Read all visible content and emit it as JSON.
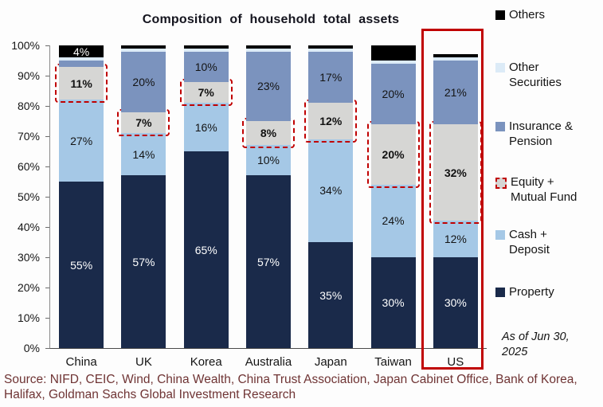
{
  "title": "Composition of household total assets",
  "as_of_note": "As of Jun 30, 2025",
  "source": "Source: NIFD, CEIC, Wind, China Wealth, China Trust Association, Japan Cabinet Office, Bank of Korea, Halifax, Goldman Sachs Global Investment Research",
  "chart_data": {
    "type": "bar",
    "variant": "stacked-percent",
    "title": "Composition of household total assets",
    "xlabel": "",
    "ylabel": "",
    "ylim": [
      0,
      100
    ],
    "yticks": [
      "0%",
      "10%",
      "20%",
      "30%",
      "40%",
      "50%",
      "60%",
      "70%",
      "80%",
      "90%",
      "100%"
    ],
    "grid": false,
    "legend_position": "right",
    "categories": [
      "China",
      "UK",
      "Korea",
      "Australia",
      "Japan",
      "Taiwan",
      "US"
    ],
    "series": [
      {
        "name": "Property",
        "color": "#1a2a4a",
        "label_color": "#ffffff",
        "bold": false,
        "dashed": false,
        "values": [
          55,
          57,
          65,
          57,
          35,
          30,
          30
        ],
        "labels": [
          "55%",
          "57%",
          "65%",
          "57%",
          "35%",
          "30%",
          "30%"
        ]
      },
      {
        "name": "Cash + Deposit",
        "color": "#a5c8e6",
        "label_color": "#141414",
        "bold": false,
        "dashed": false,
        "values": [
          27,
          14,
          16,
          10,
          34,
          24,
          12
        ],
        "labels": [
          "27%",
          "14%",
          "16%",
          "10%",
          "34%",
          "24%",
          "12%"
        ]
      },
      {
        "name": "Equity + Mutual Fund",
        "color": "#d6d6d4",
        "label_color": "#111111",
        "bold": true,
        "dashed": true,
        "values": [
          11,
          7,
          7,
          8,
          12,
          20,
          32
        ],
        "labels": [
          "11%",
          "7%",
          "7%",
          "8%",
          "12%",
          "20%",
          "32%"
        ]
      },
      {
        "name": "Insurance & Pension",
        "color": "#7b93be",
        "label_color": "#141414",
        "bold": false,
        "dashed": false,
        "values": [
          2,
          20,
          10,
          23,
          17,
          20,
          21
        ],
        "labels": [
          null,
          "20%",
          "10%",
          "23%",
          "17%",
          "20%",
          "21%"
        ]
      },
      {
        "name": "Other Securities",
        "color": "#dcebf7",
        "label_color": "#141414",
        "bold": false,
        "dashed": false,
        "values": [
          1,
          1,
          1,
          1,
          1,
          1,
          1
        ],
        "labels": [
          null,
          null,
          null,
          null,
          null,
          null,
          null
        ]
      },
      {
        "name": "Others",
        "color": "#000000",
        "label_color": "#ffffff",
        "bold": false,
        "dashed": false,
        "values": [
          4,
          1,
          1,
          1,
          1,
          5,
          1
        ],
        "labels": [
          "4%",
          null,
          null,
          null,
          null,
          null,
          null
        ]
      }
    ],
    "highlight": {
      "category": "US",
      "color": "#c00000"
    }
  },
  "legend": {
    "items": [
      {
        "label": "Others",
        "color": "#000000",
        "dashed": false
      },
      {
        "label": "Other Securities",
        "color": "#dcebf7",
        "dashed": false
      },
      {
        "label": "Insurance & Pension",
        "color": "#7b93be",
        "dashed": false
      },
      {
        "label": "Equity + Mutual Fund",
        "color": "#d6d6d4",
        "dashed": true
      },
      {
        "label": "Cash + Deposit",
        "color": "#a5c8e6",
        "dashed": false
      },
      {
        "label": "Property",
        "color": "#1a2a4a",
        "dashed": false
      }
    ]
  }
}
